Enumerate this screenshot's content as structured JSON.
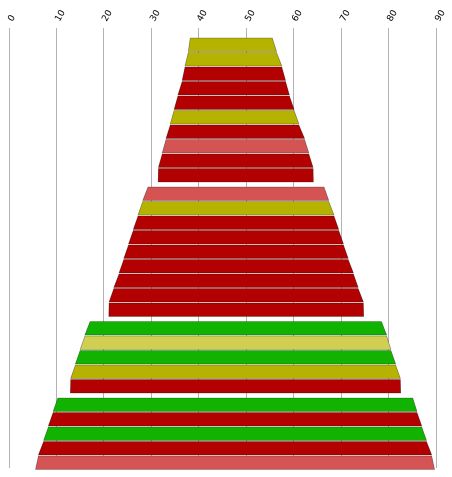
{
  "chart_data": {
    "type": "funnel",
    "title": "",
    "xlim": [
      0,
      90
    ],
    "x_ticks": [
      "0",
      "10",
      "20",
      "30",
      "40",
      "50",
      "60",
      "70",
      "80",
      "90"
    ],
    "grid": true,
    "rows": [
      {
        "start": 38.3,
        "end": 55.6,
        "color": "#b5b300"
      },
      {
        "start": 37.9,
        "end": 56.5,
        "color": "#b5b300"
      },
      {
        "start": 37.2,
        "end": 57.6,
        "color": "#b30000"
      },
      {
        "start": 36.6,
        "end": 58.4,
        "color": "#b30000"
      },
      {
        "start": 35.7,
        "end": 59.2,
        "color": "#b30000"
      },
      {
        "start": 34.9,
        "end": 60.2,
        "color": "#b5b300"
      },
      {
        "start": 34.1,
        "end": 61.2,
        "color": "#b30000"
      },
      {
        "start": 33.2,
        "end": 62.4,
        "color": "#d45454"
      },
      {
        "start": 32.4,
        "end": 63.3,
        "color": "#b30000"
      },
      {
        "start": 31.6,
        "end": 64.2,
        "color": "#b30000"
      },
      {
        "start": 29.4,
        "end": 66.5,
        "color": "#d45454"
      },
      {
        "start": 28.3,
        "end": 67.5,
        "color": "#b5b300"
      },
      {
        "start": 27.3,
        "end": 68.6,
        "color": "#b30000"
      },
      {
        "start": 26.3,
        "end": 69.6,
        "color": "#b30000"
      },
      {
        "start": 25.3,
        "end": 70.6,
        "color": "#b30000"
      },
      {
        "start": 24.3,
        "end": 71.6,
        "color": "#b30000"
      },
      {
        "start": 23.3,
        "end": 72.7,
        "color": "#b30000"
      },
      {
        "start": 22.2,
        "end": 73.7,
        "color": "#b30000"
      },
      {
        "start": 21.2,
        "end": 74.8,
        "color": "#b30000"
      },
      {
        "start": 17.2,
        "end": 78.6,
        "color": "#11b300"
      },
      {
        "start": 16.1,
        "end": 79.7,
        "color": "#d1cf52"
      },
      {
        "start": 15.1,
        "end": 80.6,
        "color": "#11b300"
      },
      {
        "start": 14.1,
        "end": 81.6,
        "color": "#b5b300"
      },
      {
        "start": 13.1,
        "end": 82.6,
        "color": "#b30000"
      },
      {
        "start": 10.4,
        "end": 85.2,
        "color": "#11b300"
      },
      {
        "start": 9.4,
        "end": 86.1,
        "color": "#b30000"
      },
      {
        "start": 8.4,
        "end": 87.1,
        "color": "#11b300"
      },
      {
        "start": 7.4,
        "end": 88.1,
        "color": "#b30000"
      },
      {
        "start": 6.3,
        "end": 89.2,
        "color": "#d45454"
      }
    ]
  }
}
